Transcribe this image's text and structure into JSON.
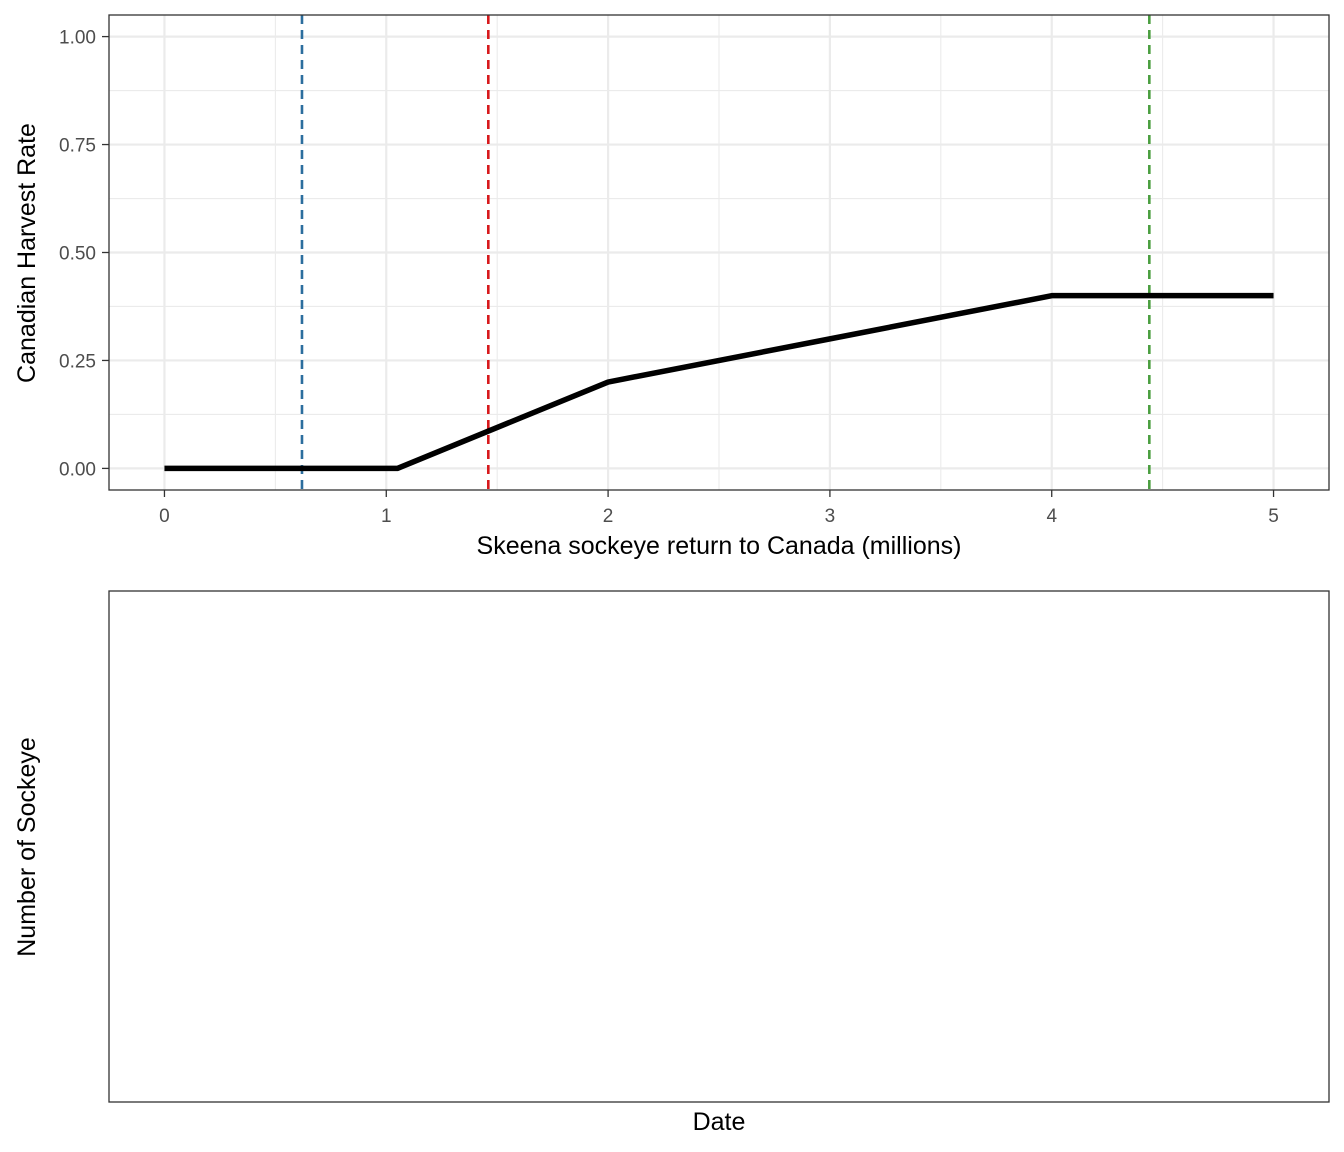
{
  "chart_data": [
    {
      "type": "line",
      "xlabel": "Skeena sockeye return to Canada (millions)",
      "ylabel": "Canadian Harvest Rate",
      "xlim": [
        -0.25,
        5.25
      ],
      "ylim": [
        -0.05,
        1.05
      ],
      "x_ticks": [
        0,
        1,
        2,
        3,
        4,
        5
      ],
      "x_tick_labels": [
        "0",
        "1",
        "2",
        "3",
        "4",
        "5"
      ],
      "y_ticks": [
        0,
        0.25,
        0.5,
        0.75,
        1.0
      ],
      "y_tick_labels": [
        "0.00",
        "0.25",
        "0.50",
        "0.75",
        "1.00"
      ],
      "grid": true,
      "series": [
        {
          "color": "#000000",
          "x": [
            0,
            1.05,
            2,
            3,
            4,
            5
          ],
          "y": [
            0,
            0,
            0.2,
            0.3,
            0.4,
            0.4
          ]
        }
      ],
      "reference_lines": [
        {
          "x": 0.62,
          "color": "#2c6e9e",
          "style": "dashed"
        },
        {
          "x": 1.46,
          "color": "#d7191c",
          "style": "dashed"
        },
        {
          "x": 4.44,
          "color": "#4a9e3f",
          "style": "dashed"
        }
      ]
    },
    {
      "type": "line",
      "xlabel": "Date",
      "ylabel": "Number of Sockeye",
      "grid": false,
      "series": []
    }
  ]
}
